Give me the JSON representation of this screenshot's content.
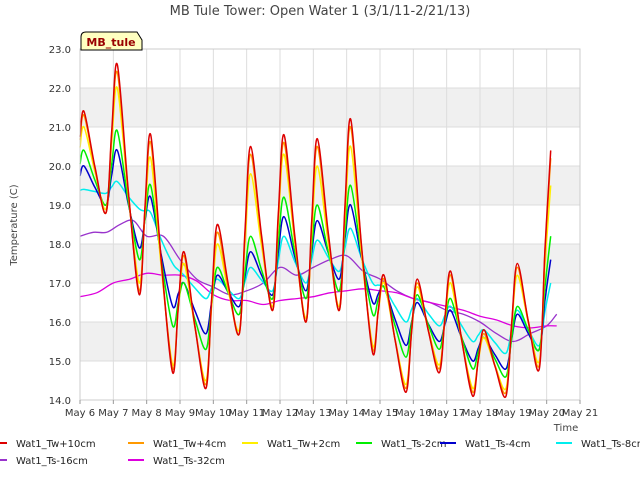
{
  "chart_data": {
    "type": "line",
    "title": "MB Tule Tower: Open Water 1 (3/1/11-2/21/13)",
    "xlabel": "Time",
    "ylabel": "Temperature (C)",
    "site_label": "MB_tule",
    "ylim": [
      14.0,
      23.0
    ],
    "xlim": [
      0,
      15
    ],
    "yticks": [
      "14.0",
      "15.0",
      "16.0",
      "17.0",
      "18.0",
      "19.0",
      "20.0",
      "21.0",
      "22.0",
      "23.0"
    ],
    "xticks": [
      "May 6",
      "May 7",
      "May 8",
      "May 9",
      "May 10",
      "May 11",
      "May 12",
      "May 13",
      "May 14",
      "May 15",
      "May 16",
      "May 17",
      "May 18",
      "May 19",
      "May 20",
      "May 21"
    ],
    "grid": true,
    "legend_position": "bottom",
    "series": [
      {
        "name": "Wat1_Tw+10cm",
        "color": "#dd0000",
        "daily_max": [
          21.4,
          22.6,
          20.8,
          17.8,
          18.5,
          20.5,
          20.8,
          20.7,
          21.2,
          17.2,
          17.1,
          17.3,
          15.8,
          17.5,
          20.4
        ],
        "daily_min": [
          18.8,
          16.7,
          14.7,
          14.3,
          15.7,
          16.3,
          16.0,
          16.3,
          15.2,
          14.2,
          14.7,
          14.1,
          14.1,
          14.8,
          14.8
        ]
      },
      {
        "name": "Wat1_Tw+4cm",
        "color": "#ff9900",
        "daily_max": [
          21.3,
          22.4,
          20.6,
          17.7,
          18.3,
          20.3,
          20.6,
          20.5,
          21.0,
          17.1,
          17.0,
          17.2,
          15.7,
          17.4,
          20.2
        ],
        "daily_min": [
          18.8,
          16.8,
          14.8,
          14.4,
          15.7,
          16.3,
          16.0,
          16.3,
          15.3,
          14.3,
          14.8,
          14.2,
          14.2,
          14.9,
          14.9
        ]
      },
      {
        "name": "Wat1_Tw+2cm",
        "color": "#ffee00",
        "daily_max": [
          21.0,
          22.0,
          20.2,
          17.5,
          18.0,
          19.8,
          20.3,
          20.0,
          20.5,
          17.0,
          16.9,
          17.0,
          15.6,
          17.2,
          19.5
        ],
        "daily_min": [
          18.9,
          17.0,
          14.9,
          14.5,
          15.8,
          16.4,
          16.1,
          16.4,
          15.4,
          14.4,
          14.9,
          14.3,
          14.3,
          15.0,
          15.0
        ]
      },
      {
        "name": "Wat1_Ts-2cm",
        "color": "#00ee00",
        "daily_max": [
          20.4,
          20.9,
          19.5,
          17.0,
          17.4,
          18.2,
          19.2,
          19.0,
          19.5,
          16.9,
          16.7,
          16.6,
          15.6,
          16.4,
          18.2
        ],
        "daily_min": [
          19.0,
          17.6,
          15.9,
          15.3,
          16.2,
          16.6,
          16.6,
          16.8,
          16.2,
          15.1,
          15.3,
          14.8,
          14.6,
          15.3,
          15.3
        ]
      },
      {
        "name": "Wat1_Ts-4cm",
        "color": "#0000cc",
        "daily_max": [
          20.0,
          20.4,
          19.2,
          17.0,
          17.2,
          17.8,
          18.7,
          18.6,
          19.0,
          16.9,
          16.5,
          16.3,
          15.6,
          16.2,
          17.6
        ],
        "daily_min": [
          19.0,
          17.9,
          16.4,
          15.7,
          16.4,
          16.7,
          16.8,
          17.1,
          16.5,
          15.4,
          15.5,
          15.0,
          14.8,
          15.3,
          15.3
        ]
      },
      {
        "name": "Wat1_Ts-8cm",
        "color": "#00eeee",
        "daily_max": [
          19.4,
          19.6,
          18.8,
          17.2,
          17.1,
          17.4,
          18.2,
          18.1,
          18.4,
          16.9,
          16.6,
          16.4,
          15.8,
          16.3,
          17.0
        ],
        "daily_min": [
          19.3,
          18.9,
          17.5,
          16.6,
          16.6,
          16.8,
          17.0,
          17.3,
          17.0,
          16.0,
          15.9,
          15.5,
          15.2,
          15.4,
          15.4
        ]
      }
    ],
    "smooth_series": [
      {
        "name": "Wat1_Ts-16cm",
        "color": "#9933cc",
        "x": [
          0,
          0.4,
          0.8,
          1.2,
          1.6,
          2.0,
          2.5,
          3.0,
          3.5,
          4.0,
          4.5,
          5.0,
          5.5,
          6.0,
          6.5,
          7.0,
          7.5,
          8.0,
          8.5,
          9.0,
          9.5,
          10.0,
          10.5,
          11.0,
          11.5,
          12.0,
          12.5,
          13.0,
          13.5,
          14.0,
          14.3
        ],
        "y": [
          18.2,
          18.3,
          18.3,
          18.5,
          18.6,
          18.2,
          18.2,
          17.6,
          17.1,
          16.9,
          16.7,
          16.8,
          17.0,
          17.4,
          17.2,
          17.4,
          17.6,
          17.7,
          17.3,
          17.1,
          16.8,
          16.6,
          16.5,
          16.3,
          16.2,
          16.0,
          15.7,
          15.5,
          15.7,
          15.9,
          16.2
        ]
      },
      {
        "name": "Wat1_Ts-32cm",
        "color": "#dd00dd",
        "x": [
          0,
          0.5,
          1.0,
          1.5,
          2.0,
          2.5,
          3.0,
          3.5,
          4.0,
          4.5,
          5.0,
          5.5,
          6.0,
          6.5,
          7.0,
          7.5,
          8.0,
          8.5,
          9.0,
          9.5,
          10.0,
          10.5,
          11.0,
          11.5,
          12.0,
          12.5,
          13.0,
          13.5,
          14.0,
          14.3
        ],
        "y": [
          16.65,
          16.75,
          17.0,
          17.1,
          17.25,
          17.2,
          17.2,
          17.05,
          16.7,
          16.55,
          16.55,
          16.45,
          16.55,
          16.6,
          16.65,
          16.75,
          16.8,
          16.85,
          16.8,
          16.75,
          16.6,
          16.5,
          16.4,
          16.3,
          16.15,
          16.05,
          15.9,
          15.85,
          15.9,
          15.9
        ]
      }
    ]
  }
}
